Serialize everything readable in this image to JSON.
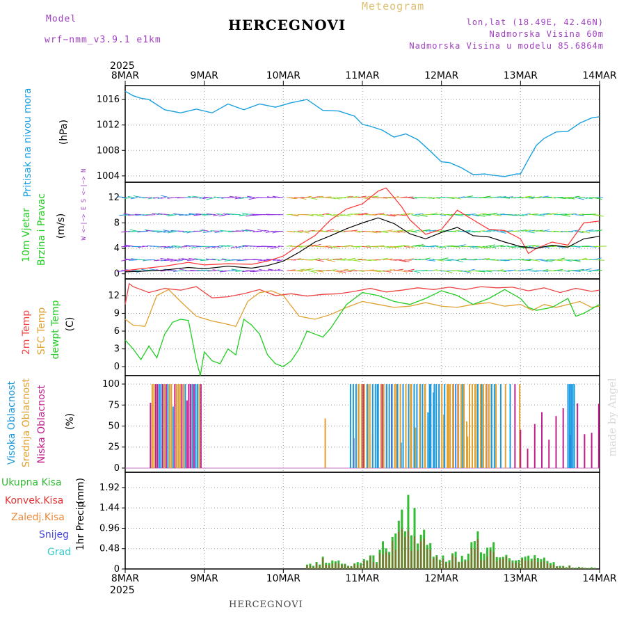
{
  "header": {
    "model_label": "Model",
    "model_name": "wrf−nmm_v3.9.1 e1km",
    "product": "Meteogram",
    "location_title": "HERCEGNOVI",
    "coords": "lon,lat (18.49E, 42.46N)",
    "altitude": "Nadmorska Visina 60m",
    "model_altitude": "Nadmorska Visina u modelu 85.6864m",
    "footer_title": "HERCEGNOVI",
    "credit": "made by Angel"
  },
  "colors": {
    "pressure": "#1aa0e0",
    "wind_speed": "#000000",
    "wind_gust": "#ff3030",
    "temp2m": "#ee4444",
    "sfc_temp": "#e0a030",
    "dewpoint": "#22cc22",
    "cloud_high": "#1a9ae0",
    "cloud_mid": "#e0a030",
    "cloud_low": "#c0208c",
    "precip_total": "#33bb33",
    "precip_conv": "#dd3333",
    "precip_frozen": "#ee8833",
    "snow": "#4444dd",
    "graupel": "#33cccc"
  },
  "chart_data": [
    {
      "type": "line",
      "x_axis": {
        "year": "2025",
        "ticks": [
          "8MAR",
          "9MAR",
          "10MAR",
          "11MAR",
          "12MAR",
          "13MAR",
          "14MAR"
        ],
        "range_days": [
          0,
          6
        ]
      },
      "grid": true,
      "panels": [
        {
          "id": "pressure",
          "type": "line",
          "ylabel": "Pritisak na nivou mora",
          "unit": "(hPa)",
          "yticks": [
            "1004",
            "1008",
            "1012",
            "1016"
          ],
          "ylim": [
            1003,
            1018.2
          ],
          "series": [
            {
              "x": [
                0,
                0.1,
                0.2,
                0.3,
                0.5,
                0.7,
                0.9,
                1.1,
                1.3,
                1.5,
                1.7,
                1.9,
                2.1,
                2.3,
                2.5,
                2.7,
                2.9,
                3.0,
                3.1,
                3.25,
                3.4,
                3.55,
                3.7,
                3.85,
                4.0,
                4.1,
                4.25,
                4.4,
                4.55,
                4.65,
                4.8,
                4.95,
                5.0,
                5.1,
                5.2,
                5.3,
                5.45,
                5.6,
                5.75,
                5.9,
                6.0
              ],
              "y": [
                1017.3,
                1016.6,
                1016.2,
                1016.0,
                1014.4,
                1013.9,
                1014.5,
                1013.9,
                1015.3,
                1014.4,
                1015.3,
                1014.8,
                1015.5,
                1016.0,
                1014.3,
                1014.2,
                1013.4,
                1012.1,
                1011.8,
                1011.2,
                1010.1,
                1010.6,
                1009.7,
                1008.0,
                1006.2,
                1006.1,
                1005.3,
                1004.2,
                1004.3,
                1004.1,
                1003.9,
                1004.3,
                1004.3,
                1006.6,
                1008.8,
                1009.9,
                1010.9,
                1011.0,
                1012.3,
                1013.1,
                1013.3
              ]
            }
          ]
        },
        {
          "id": "wind",
          "type": "line",
          "ylabel": "10m Vjetar",
          "ylabel2": "Brzina i Pravac",
          "unit": "(m/s)",
          "compass": "W <−|−> E   S <−|−> N",
          "yticks": [
            "0",
            "4",
            "8",
            "12"
          ],
          "ylim": [
            -0.8,
            14.4
          ],
          "series": [
            {
              "name": "speed",
              "x": [
                0,
                0.2,
                0.5,
                0.8,
                1.0,
                1.3,
                1.6,
                1.8,
                2.0,
                2.2,
                2.4,
                2.6,
                2.8,
                3.0,
                3.2,
                3.4,
                3.6,
                3.8,
                4.0,
                4.2,
                4.4,
                4.6,
                4.8,
                5.0,
                5.2,
                5.4,
                5.6,
                5.8,
                6.0
              ],
              "y": [
                0.3,
                0.4,
                0.6,
                1.0,
                0.8,
                1.2,
                0.9,
                1.3,
                2.0,
                3.4,
                5.0,
                6.0,
                7.1,
                8.0,
                8.8,
                7.9,
                6.3,
                5.5,
                6.5,
                7.3,
                6.0,
                5.8,
                5.0,
                4.3,
                4.0,
                4.5,
                4.2,
                5.5,
                5.9
              ]
            },
            {
              "name": "gust",
              "x": [
                0,
                0.2,
                0.5,
                0.8,
                1.0,
                1.3,
                1.6,
                1.8,
                2.0,
                2.2,
                2.4,
                2.6,
                2.8,
                3.0,
                3.1,
                3.2,
                3.3,
                3.4,
                3.5,
                3.6,
                3.8,
                4.0,
                4.2,
                4.4,
                4.6,
                4.8,
                5.0,
                5.1,
                5.2,
                5.4,
                5.6,
                5.8,
                6.0
              ],
              "y": [
                0.5,
                0.8,
                1.2,
                1.8,
                1.4,
                1.6,
                1.5,
                2.0,
                2.8,
                4.5,
                6.0,
                8.5,
                10.2,
                11.0,
                12.0,
                13.0,
                13.5,
                12.0,
                10.5,
                8.5,
                6.2,
                7.0,
                10.0,
                8.5,
                7.0,
                6.8,
                5.5,
                3.2,
                4.0,
                5.0,
                4.5,
                8.0,
                8.3
              ]
            }
          ]
        },
        {
          "id": "temperature",
          "type": "line",
          "ylabel": "2m Temp",
          "ylabel2": "SFC Temp",
          "ylabel3": "dewpt Temp",
          "unit": "(C)",
          "yticks": [
            "0",
            "3",
            "6",
            "9",
            "12"
          ],
          "ylim": [
            -1.5,
            14.8
          ],
          "series": [
            {
              "name": "2m",
              "x": [
                0,
                0.05,
                0.1,
                0.3,
                0.5,
                0.7,
                0.9,
                1.1,
                1.3,
                1.5,
                1.7,
                1.9,
                2.1,
                2.3,
                2.5,
                2.7,
                2.9,
                3.1,
                3.3,
                3.5,
                3.7,
                3.9,
                4.1,
                4.3,
                4.5,
                4.7,
                4.9,
                5.1,
                5.3,
                5.5,
                5.7,
                5.9,
                6.0
              ],
              "y": [
                10.5,
                14.0,
                13.5,
                12.5,
                13.2,
                12.9,
                13.5,
                11.6,
                11.8,
                12.3,
                13.0,
                12.0,
                12.3,
                11.9,
                12.2,
                12.3,
                12.7,
                13.2,
                12.6,
                12.9,
                13.3,
                13.0,
                13.4,
                13.0,
                13.5,
                13.3,
                13.4,
                12.8,
                13.3,
                12.5,
                13.2,
                12.7,
                12.9
              ]
            },
            {
              "name": "sfc",
              "x": [
                0,
                0.1,
                0.25,
                0.4,
                0.55,
                0.7,
                0.9,
                1.1,
                1.25,
                1.4,
                1.55,
                1.7,
                1.85,
                2.0,
                2.2,
                2.4,
                2.6,
                2.8,
                3.0,
                3.2,
                3.4,
                3.6,
                3.8,
                4.0,
                4.2,
                4.4,
                4.6,
                4.8,
                5.0,
                5.15,
                5.3,
                5.45,
                5.6,
                5.75,
                5.9,
                6.0
              ],
              "y": [
                8.0,
                7.0,
                6.8,
                12.0,
                13.0,
                11.0,
                8.5,
                7.7,
                7.3,
                6.8,
                11.0,
                12.5,
                12.8,
                12.0,
                8.5,
                8.0,
                8.8,
                10.0,
                11.0,
                10.5,
                10.0,
                10.2,
                10.8,
                10.2,
                10.0,
                10.5,
                10.8,
                10.2,
                10.5,
                9.5,
                10.5,
                10.0,
                10.5,
                11.0,
                10.0,
                10.2
              ]
            },
            {
              "name": "dew",
              "x": [
                0,
                0.1,
                0.2,
                0.3,
                0.4,
                0.5,
                0.6,
                0.7,
                0.8,
                0.9,
                0.95,
                1.0,
                1.1,
                1.2,
                1.3,
                1.4,
                1.5,
                1.6,
                1.7,
                1.8,
                1.9,
                2.0,
                2.1,
                2.2,
                2.3,
                2.4,
                2.5,
                2.6,
                2.8,
                3.0,
                3.2,
                3.4,
                3.6,
                3.8,
                4.0,
                4.2,
                4.4,
                4.6,
                4.8,
                5.0,
                5.1,
                5.2,
                5.4,
                5.6,
                5.7,
                5.8,
                6.0
              ],
              "y": [
                4.5,
                3.0,
                1.2,
                3.5,
                1.5,
                5.5,
                7.5,
                8.0,
                7.8,
                1.0,
                -1.5,
                2.5,
                1.0,
                0.5,
                3.0,
                2.0,
                8.0,
                7.0,
                5.5,
                2.0,
                0.5,
                0.0,
                1.0,
                3.0,
                6.0,
                5.5,
                5.0,
                6.5,
                10.5,
                12.5,
                12.0,
                11.0,
                10.5,
                11.5,
                12.8,
                12.0,
                10.5,
                11.5,
                13.0,
                11.5,
                10.0,
                9.5,
                10.0,
                11.5,
                8.5,
                9.0,
                10.5
              ]
            }
          ]
        },
        {
          "id": "cloud",
          "type": "bar",
          "ylabel": "Visoka Oblacnost",
          "ylabel2": "Srednja Oblacnost",
          "ylabel3": "Niska Oblacnost",
          "unit": "(%)",
          "yticks": [
            "0",
            "25",
            "50",
            "75",
            "100"
          ],
          "ylim": [
            -5,
            110
          ]
        },
        {
          "id": "precip",
          "type": "bar",
          "ylabel": "1hr Precip",
          "unit": "(mm)",
          "yticks": [
            "0",
            "0.48",
            "0.96",
            "1.44",
            "1.92"
          ],
          "ylim": [
            0,
            2.28
          ],
          "legend": [
            "Ukupna Kisa",
            "Konvek.Kisa",
            "Zaledj.Kisa",
            "Snijeg",
            "Grad"
          ]
        }
      ]
    }
  ]
}
